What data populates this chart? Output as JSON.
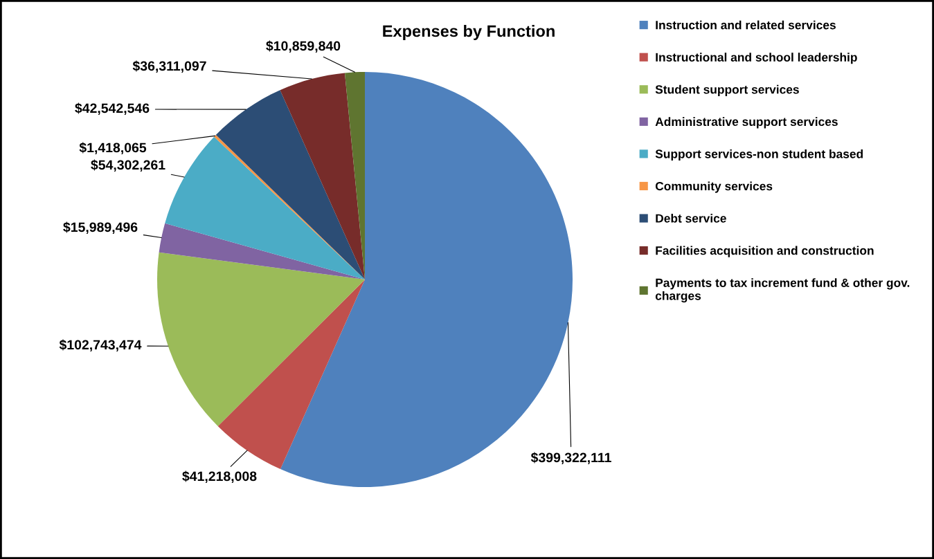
{
  "chart_data": {
    "type": "pie",
    "title": "Expenses by Function",
    "categories": [
      "Instruction and related services",
      "Instructional and school leadership",
      "Student support services",
      "Administrative support services",
      "Support services-non student based",
      "Community services",
      "Debt service",
      "Facilities acquisition and construction",
      "Payments to tax increment fund & other gov. charges"
    ],
    "values": [
      399322111,
      41218008,
      102743474,
      15989496,
      54302261,
      1418065,
      42542546,
      36311097,
      10859840
    ],
    "value_labels": [
      "$399,322,111",
      "$41,218,008",
      "$102,743,474",
      "$15,989,496",
      "$54,302,261",
      "$1,418,065",
      "$42,542,546",
      "$36,311,097",
      "$10,859,840"
    ],
    "colors": [
      "#4f81bd",
      "#c0504d",
      "#9bbb59",
      "#8064a2",
      "#4bacc6",
      "#f79646",
      "#2c4d75",
      "#772c2a",
      "#5f7530"
    ],
    "legend": "right"
  }
}
